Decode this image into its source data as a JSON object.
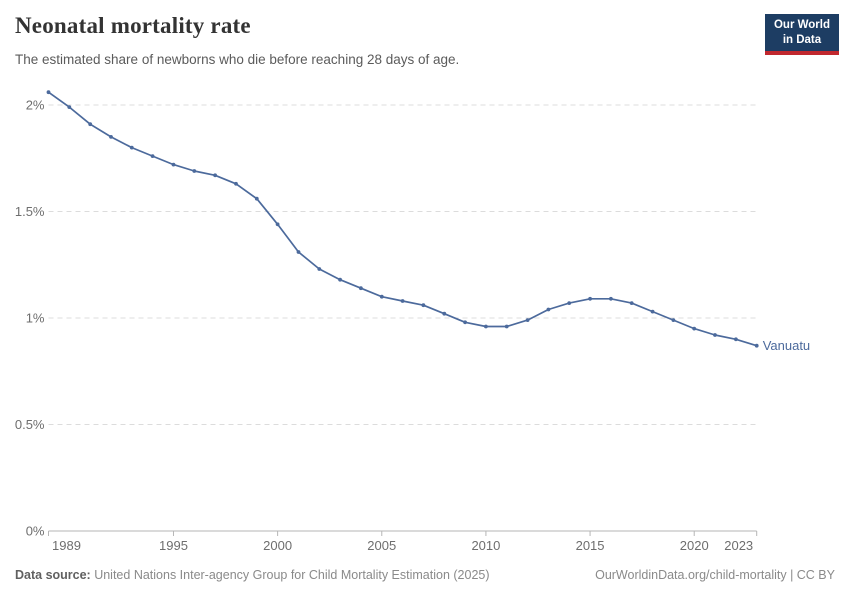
{
  "header": {
    "title": "Neonatal mortality rate",
    "subtitle": "The estimated share of newborns who die before reaching 28 days of age.",
    "logo": {
      "line1": "Our World",
      "line2": "in Data",
      "bg_color": "#1d3d63",
      "accent_color": "#c1282e"
    }
  },
  "chart_data": {
    "type": "line",
    "title": "Neonatal mortality rate",
    "xlabel": "",
    "ylabel": "",
    "grid": true,
    "legend_position": "end-of-line",
    "xlim": [
      1989,
      2023
    ],
    "ylim": [
      0,
      2.15
    ],
    "x_ticks": [
      1989,
      1995,
      2000,
      2005,
      2010,
      2015,
      2020,
      2023
    ],
    "y_ticks": [
      {
        "v": 0,
        "label": "0%"
      },
      {
        "v": 0.5,
        "label": "0.5%"
      },
      {
        "v": 1,
        "label": "1%"
      },
      {
        "v": 1.5,
        "label": "1.5%"
      },
      {
        "v": 2,
        "label": "2%"
      }
    ],
    "series": [
      {
        "name": "Vanuatu",
        "color": "#4c6a9c",
        "x": [
          1989,
          1990,
          1991,
          1992,
          1993,
          1994,
          1995,
          1996,
          1997,
          1998,
          1999,
          2000,
          2001,
          2002,
          2003,
          2004,
          2005,
          2006,
          2007,
          2008,
          2009,
          2010,
          2011,
          2012,
          2013,
          2014,
          2015,
          2016,
          2017,
          2018,
          2019,
          2020,
          2021,
          2022,
          2023
        ],
        "values": [
          2.06,
          1.99,
          1.91,
          1.85,
          1.8,
          1.76,
          1.72,
          1.69,
          1.67,
          1.63,
          1.56,
          1.44,
          1.31,
          1.23,
          1.18,
          1.14,
          1.1,
          1.08,
          1.06,
          1.02,
          0.98,
          0.96,
          0.96,
          0.99,
          1.04,
          1.07,
          1.09,
          1.09,
          1.07,
          1.03,
          0.99,
          0.95,
          0.92,
          0.9,
          0.87
        ]
      }
    ]
  },
  "footer": {
    "source_label": "Data source:",
    "source_text": " United Nations Inter-agency Group for Child Mortality Estimation (2025)",
    "link_text": "OurWorldinData.org/child-mortality | CC BY"
  }
}
